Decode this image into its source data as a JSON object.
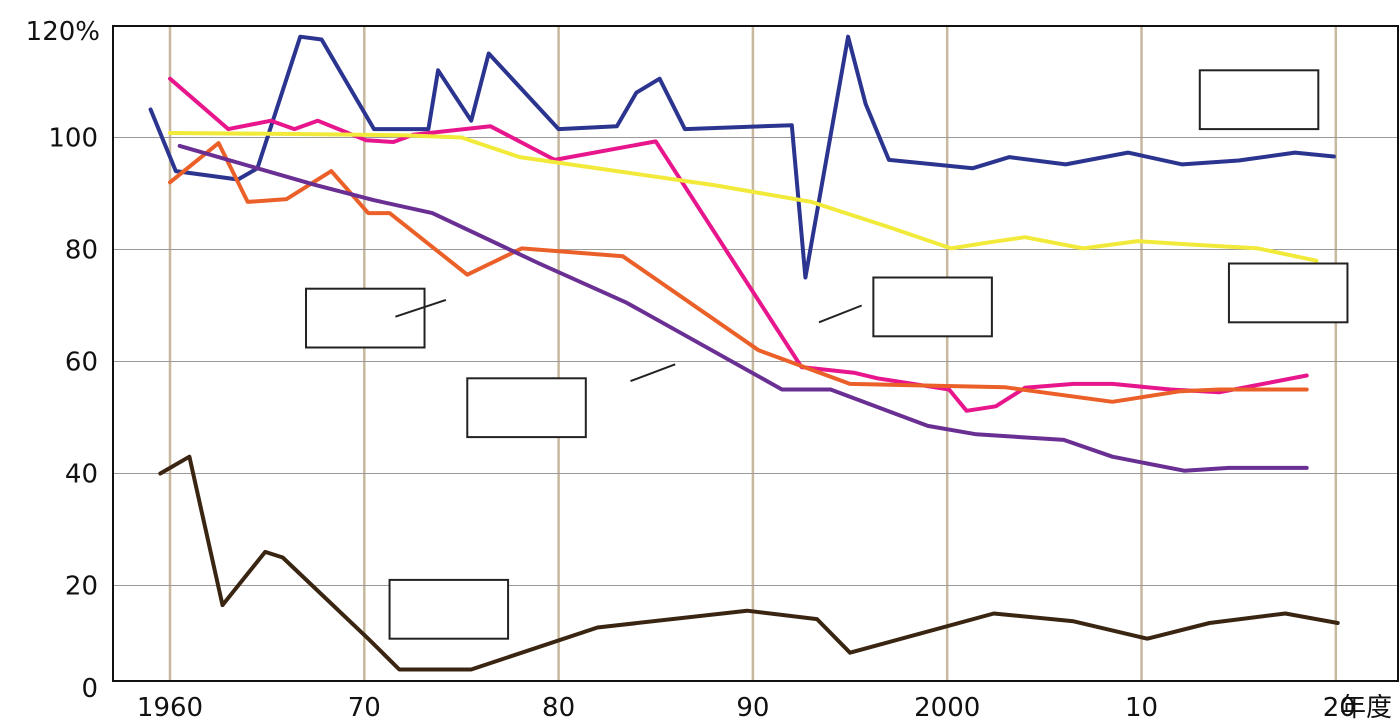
{
  "chart_data": {
    "type": "line",
    "title": "",
    "xlabel": "",
    "ylabel": "",
    "y_unit_label": "120%",
    "x_unit_label": "年度",
    "xlim": [
      1959,
      2021
    ],
    "ylim": [
      0,
      120
    ],
    "y_ticks": [
      0,
      20,
      40,
      60,
      80,
      100,
      120
    ],
    "y_tick_labels": [
      "0",
      "20",
      "40",
      "60",
      "80",
      "100",
      ""
    ],
    "x_ticks": [
      1960,
      1970,
      1980,
      1990,
      2000,
      2010,
      2020
    ],
    "x_tick_labels": [
      "1960",
      "70",
      "80",
      "90",
      "2000",
      "10",
      "20"
    ],
    "grid": "x-major vertical lines and y-major horizontal lines",
    "legend": "none (blank label boxes)",
    "series": [
      {
        "color": "#2b3590",
        "x": [
          1959,
          1960.3,
          1963.5,
          1964.5,
          1966.7,
          1967.8,
          1970.5,
          1973.3,
          1973.8,
          1975.5,
          1976.4,
          1980,
          1983,
          1984,
          1985.2,
          1986.5,
          1992,
          1992.7,
          1994.9,
          1995.8,
          1997,
          2001.3,
          2003.2,
          2006.1,
          2009.3,
          2012.1,
          2015,
          2017.9,
          2019.9
        ],
        "y": [
          105,
          94,
          92.5,
          94.5,
          118,
          117.5,
          101.5,
          101.5,
          112,
          103,
          115,
          101.5,
          102,
          108,
          110.5,
          101.5,
          102.2,
          75,
          118,
          106,
          96,
          94.5,
          96.5,
          95.2,
          97.3,
          95.2,
          95.9,
          97.3,
          96.6
        ]
      },
      {
        "color": "#e8168c",
        "x": [
          1960,
          1963,
          1965.2,
          1966.4,
          1967.6,
          1970.1,
          1971.5,
          1972.5,
          1976.5,
          1979.8,
          1985,
          1992.5,
          1995.2,
          1996.4,
          2000.1,
          2001,
          2002.5,
          2004,
          2006.5,
          2008.5,
          2011.5,
          2014,
          2018.5
        ],
        "y": [
          110.5,
          101.5,
          103,
          101.5,
          103,
          99.5,
          99.2,
          100.5,
          102,
          96,
          99.3,
          59,
          58,
          57,
          55,
          51.2,
          52,
          55.3,
          56,
          56,
          55,
          54.5,
          57.5
        ]
      },
      {
        "color": "#f2ea3a",
        "x": [
          1960,
          1967,
          1972,
          1975,
          1978,
          1983,
          1988,
          1993,
          1997,
          2000.2,
          2002,
          2004,
          2007,
          2009.8,
          2012.5,
          2016,
          2019
        ],
        "y": [
          100.8,
          100.6,
          100.4,
          100,
          96.5,
          94,
          91.5,
          88.5,
          84,
          80.2,
          81.2,
          82.2,
          80.2,
          81.5,
          80.9,
          80.2,
          78
        ]
      },
      {
        "color": "#eb6029",
        "x": [
          1960,
          1962.5,
          1964,
          1966,
          1968.3,
          1970.2,
          1971.3,
          1975.3,
          1978.1,
          1983.3,
          1990.3,
          1995,
          1999.1,
          2003,
          2008.5,
          2012,
          2014,
          2018.5
        ],
        "y": [
          92,
          99,
          88.5,
          89,
          94,
          86.5,
          86.5,
          75.5,
          80.2,
          78.8,
          62,
          56,
          55.7,
          55.4,
          52.8,
          54.7,
          55,
          55
        ]
      },
      {
        "color": "#6a2f93",
        "x": [
          1960.5,
          1964,
          1967.5,
          1970.5,
          1973.5,
          1979,
          1983.5,
          1991.5,
          1994,
          1999,
          2001.5,
          2006,
          2008.5,
          2012.2,
          2014.5,
          2018.5
        ],
        "y": [
          98.5,
          95,
          91.5,
          88.8,
          86.5,
          77.5,
          70.5,
          55,
          55,
          48.5,
          47,
          46,
          43,
          40.5,
          41,
          41
        ]
      },
      {
        "color": "#3a2512",
        "x": [
          1959.5,
          1961,
          1962.7,
          1964.9,
          1965.8,
          1970.2,
          1971.8,
          1975.5,
          1982,
          1989.7,
          1993.3,
          1995,
          2002.4,
          2006.5,
          2010.3,
          2013.5,
          2017.4,
          2020.1
        ],
        "y": [
          40,
          43,
          16.5,
          26,
          25,
          10.5,
          5,
          5,
          12.5,
          15.5,
          14,
          8,
          15,
          13.6,
          10.5,
          13.3,
          15,
          13.3
        ]
      }
    ],
    "label_boxes": [
      {
        "x": 2013,
        "y": 112,
        "w_years": 6.1,
        "h_pct": 10.5
      },
      {
        "x": 2014.5,
        "y": 77.5,
        "w_years": 6.1,
        "h_pct": 10.5
      },
      {
        "x": 1967,
        "y": 73,
        "w_years": 6.1,
        "h_pct": 10.5
      },
      {
        "x": 1996.2,
        "y": 75,
        "w_years": 6.1,
        "h_pct": 10.5
      },
      {
        "x": 1975.3,
        "y": 57,
        "w_years": 6.1,
        "h_pct": 10.5
      },
      {
        "x": 1971.3,
        "y": 21,
        "w_years": 6.1,
        "h_pct": 10.5
      }
    ],
    "leaders": [
      {
        "x1": 1971.6,
        "y1": 68,
        "x2": 1974.2,
        "y2": 71
      },
      {
        "x1": 1983.7,
        "y1": 56.5,
        "x2": 1986,
        "y2": 59.5
      },
      {
        "x1": 1993.4,
        "y1": 67,
        "x2": 1995.6,
        "y2": 70
      }
    ]
  }
}
